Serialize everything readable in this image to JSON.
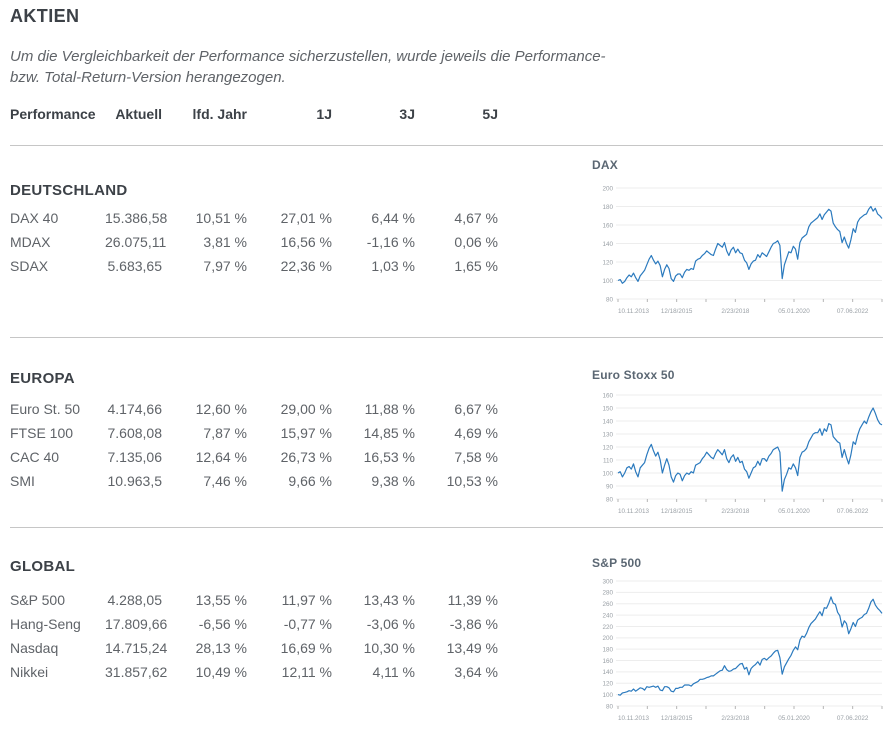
{
  "page": {
    "title": "AKTIEN",
    "description_lines": [
      "Um die Vergleichbarkeit der Performance sicherzustellen, wurde jeweils die Performance-",
      "bzw. Total-Return-Version herangezogen."
    ]
  },
  "table": {
    "headers": [
      "Performance",
      "Aktuell",
      "lfd. Jahr",
      "1J",
      "3J",
      "5J"
    ],
    "sections": [
      {
        "name": "DEUTSCHLAND",
        "rows": [
          {
            "label": "DAX 40",
            "values": [
              "15.386,58",
              "10,51 %",
              "27,01 %",
              "6,44 %",
              "4,67 %"
            ]
          },
          {
            "label": "MDAX",
            "values": [
              "26.075,11",
              "3,81 %",
              "16,56 %",
              "-1,16 %",
              "0,06 %"
            ]
          },
          {
            "label": "SDAX",
            "values": [
              "5.683,65",
              "7,97 %",
              "22,36 %",
              "1,03 %",
              "1,65 %"
            ]
          }
        ]
      },
      {
        "name": "EUROPA",
        "rows": [
          {
            "label": "Euro St. 50",
            "values": [
              "4.174,66",
              "12,60 %",
              "29,00 %",
              "11,88 %",
              "6,67 %"
            ]
          },
          {
            "label": "FTSE 100",
            "values": [
              "7.608,08",
              "7,87 %",
              "15,97 %",
              "14,85 %",
              "4,69 %"
            ]
          },
          {
            "label": "CAC 40",
            "values": [
              "7.135,06",
              "12,64 %",
              "26,73 %",
              "16,53 %",
              "7,58 %"
            ]
          },
          {
            "label": "SMI",
            "values": [
              "10.963,5",
              "7,46 %",
              "9,66 %",
              "9,38 %",
              "10,53 %"
            ]
          }
        ]
      },
      {
        "name": "GLOBAL",
        "rows": [
          {
            "label": "S&P 500",
            "values": [
              "4.288,05",
              "13,55 %",
              "11,97 %",
              "13,43 %",
              "11,39 %"
            ]
          },
          {
            "label": "Hang-Seng",
            "values": [
              "17.809,66",
              "-6,56 %",
              "-0,77 %",
              "-3,06 %",
              "-3,86 %"
            ]
          },
          {
            "label": "Nasdaq",
            "values": [
              "14.715,24",
              "28,13 %",
              "16,69 %",
              "10,30 %",
              "13,49 %"
            ]
          },
          {
            "label": "Nikkei",
            "values": [
              "31.857,62",
              "10,49 %",
              "12,11 %",
              "4,11 %",
              "3,64 %"
            ]
          }
        ]
      }
    ]
  },
  "colors": {
    "line_blue": "#2b7abe",
    "grid": "#ededed",
    "axis_label": "#9aa0a6",
    "tick": "#b5b5b5",
    "heading": "#3c4147",
    "body_text": "#5f6368",
    "divider": "#c6c6c6"
  },
  "chart_data": [
    {
      "type": "line",
      "title": "DAX",
      "x_tick_labels": [
        "10.11.2013",
        "12/18/2015",
        "2/23/2018",
        "05.01.2020",
        "07.06.2022"
      ],
      "y_ticks": [
        200,
        180,
        160,
        140,
        120,
        100,
        80
      ],
      "ylim": [
        80,
        200
      ],
      "series": [
        {
          "name": "DAX (indexed, start = 100)",
          "values": [
            100,
            101,
            97,
            99,
            103,
            106,
            104,
            108,
            103,
            99,
            105,
            108,
            111,
            117,
            123,
            127,
            122,
            118,
            121,
            116,
            104,
            112,
            117,
            113,
            102,
            99,
            105,
            107,
            107,
            103,
            109,
            112,
            111,
            113,
            112,
            121,
            123,
            124,
            127,
            129,
            132,
            130,
            128,
            127,
            134,
            140,
            138,
            136,
            141,
            132,
            127,
            133,
            136,
            130,
            134,
            130,
            129,
            122,
            119,
            112,
            118,
            121,
            122,
            128,
            125,
            130,
            128,
            126,
            131,
            136,
            140,
            141,
            143,
            138,
            102,
            117,
            124,
            131,
            130,
            137,
            134,
            123,
            141,
            146,
            148,
            150,
            158,
            162,
            164,
            166,
            168,
            172,
            166,
            171,
            174,
            177,
            175,
            162,
            158,
            155,
            153,
            141,
            147,
            140,
            135,
            144,
            156,
            152,
            163,
            167,
            169,
            171,
            172,
            177,
            180,
            175,
            178,
            172,
            170,
            167
          ]
        }
      ]
    },
    {
      "type": "line",
      "title": "Euro Stoxx 50",
      "x_tick_labels": [
        "10.11.2013",
        "12/18/2015",
        "2/23/2018",
        "05.01.2020",
        "07.06.2022"
      ],
      "y_ticks": [
        160,
        150,
        140,
        130,
        120,
        110,
        100,
        90,
        80
      ],
      "ylim": [
        80,
        160
      ],
      "series": [
        {
          "name": "Euro Stoxx 50 (indexed, start = 100)",
          "values": [
            100,
            101,
            97,
            100,
            104,
            105,
            103,
            107,
            101,
            97,
            104,
            106,
            108,
            114,
            119,
            122,
            117,
            113,
            116,
            110,
            100,
            106,
            111,
            106,
            97,
            93,
            98,
            100,
            99,
            94,
            98,
            100,
            99,
            101,
            100,
            106,
            107,
            108,
            111,
            113,
            116,
            114,
            112,
            111,
            115,
            118,
            116,
            114,
            118,
            111,
            108,
            112,
            114,
            109,
            112,
            108,
            109,
            103,
            101,
            96,
            100,
            104,
            105,
            109,
            106,
            111,
            111,
            109,
            113,
            115,
            118,
            119,
            120,
            116,
            86,
            95,
            99,
            104,
            103,
            107,
            104,
            98,
            112,
            116,
            117,
            119,
            124,
            127,
            130,
            131,
            131,
            134,
            129,
            134,
            132,
            138,
            137,
            128,
            126,
            124,
            123,
            112,
            118,
            112,
            107,
            114,
            124,
            122,
            129,
            134,
            137,
            140,
            138,
            143,
            147,
            150,
            146,
            141,
            138,
            137
          ]
        }
      ]
    },
    {
      "type": "line",
      "title": "S&P 500",
      "x_tick_labels": [
        "10.11.2013",
        "12/18/2015",
        "2/23/2018",
        "05.01.2020",
        "07.06.2022"
      ],
      "y_ticks": [
        300,
        280,
        260,
        240,
        220,
        200,
        180,
        160,
        140,
        120,
        100,
        80
      ],
      "ylim": [
        80,
        300
      ],
      "series": [
        {
          "name": "S&P 500 (indexed, start = 100)",
          "values": [
            100,
            99,
            103,
            104,
            105,
            107,
            106,
            110,
            106,
            109,
            112,
            111,
            108,
            114,
            113,
            114,
            115,
            113,
            115,
            108,
            107,
            114,
            114,
            112,
            106,
            105,
            111,
            111,
            113,
            113,
            117,
            117,
            117,
            115,
            119,
            121,
            123,
            127,
            127,
            128,
            130,
            131,
            133,
            133,
            136,
            139,
            142,
            143,
            151,
            144,
            141,
            142,
            145,
            146,
            150,
            154,
            155,
            145,
            148,
            135,
            146,
            150,
            153,
            158,
            152,
            162,
            164,
            161,
            165,
            168,
            173,
            177,
            178,
            165,
            136,
            149,
            156,
            163,
            169,
            178,
            184,
            179,
            196,
            203,
            201,
            208,
            218,
            225,
            229,
            233,
            240,
            246,
            239,
            253,
            252,
            261,
            272,
            261,
            259,
            245,
            239,
            219,
            230,
            225,
            207,
            216,
            227,
            220,
            231,
            234,
            236,
            241,
            243,
            252,
            263,
            268,
            258,
            252,
            248,
            243
          ]
        }
      ]
    }
  ]
}
